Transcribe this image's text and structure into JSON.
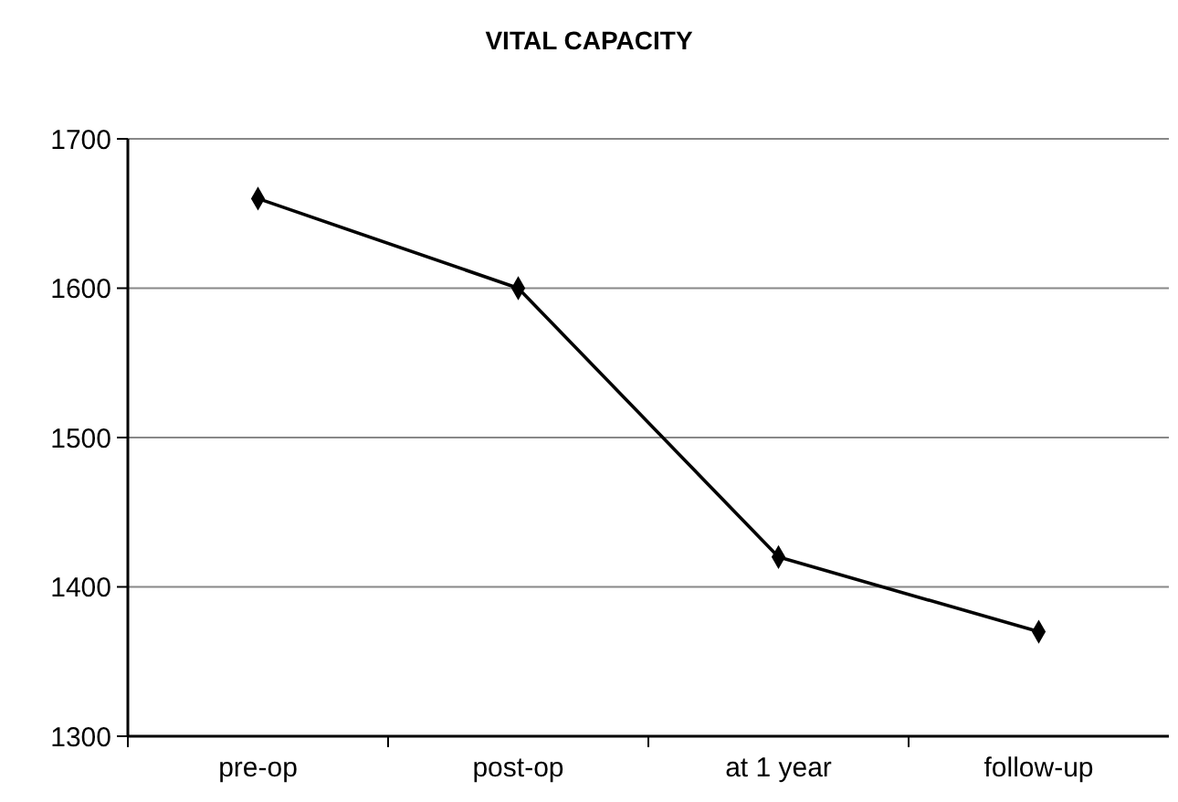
{
  "chart_data": {
    "type": "line",
    "title": "VITAL CAPACITY",
    "categories": [
      "pre-op",
      "post-op",
      "at 1 year",
      "follow-up"
    ],
    "series": [
      {
        "color": "#000000",
        "values": [
          1660,
          1600,
          1420,
          1370
        ]
      }
    ],
    "ylim": [
      1300,
      1700
    ],
    "yticks": [
      1300,
      1400,
      1500,
      1600,
      1700
    ],
    "grid": "y",
    "marker": "diamond",
    "line_style": "solid"
  }
}
